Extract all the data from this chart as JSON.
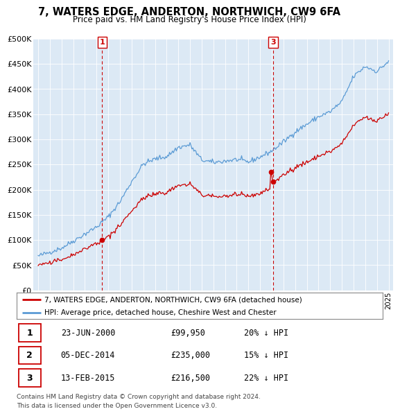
{
  "title": "7, WATERS EDGE, ANDERTON, NORTHWICH, CW9 6FA",
  "subtitle": "Price paid vs. HM Land Registry's House Price Index (HPI)",
  "legend_line1": "7, WATERS EDGE, ANDERTON, NORTHWICH, CW9 6FA (detached house)",
  "legend_line2": "HPI: Average price, detached house, Cheshire West and Chester",
  "footnote1": "Contains HM Land Registry data © Crown copyright and database right 2024.",
  "footnote2": "This data is licensed under the Open Government Licence v3.0.",
  "transactions": [
    {
      "label": "1",
      "date": "23-JUN-2000",
      "price": "£99,950",
      "hpi": "20% ↓ HPI",
      "year": 2000.47
    },
    {
      "label": "2",
      "date": "05-DEC-2014",
      "price": "£235,000",
      "hpi": "15% ↓ HPI",
      "year": 2014.92
    },
    {
      "label": "3",
      "date": "13-FEB-2015",
      "price": "£216,500",
      "hpi": "22% ↓ HPI",
      "year": 2015.12
    }
  ],
  "sale_markers": [
    {
      "year": 2000.47,
      "value": 99950
    },
    {
      "year": 2014.92,
      "value": 235000
    },
    {
      "year": 2015.12,
      "value": 216500
    }
  ],
  "vlines": [
    {
      "year": 2000.47,
      "label": "1"
    },
    {
      "year": 2015.12,
      "label": "3"
    }
  ],
  "hpi_color": "#5b9bd5",
  "price_color": "#cc0000",
  "vline_color": "#cc0000",
  "ylim": [
    0,
    500000
  ],
  "yticks": [
    0,
    50000,
    100000,
    150000,
    200000,
    250000,
    300000,
    350000,
    400000,
    450000,
    500000
  ],
  "xlim": [
    1994.6,
    2025.4
  ],
  "background_color": "#ffffff",
  "plot_bg_color": "#dce9f5",
  "grid_color": "#ffffff"
}
